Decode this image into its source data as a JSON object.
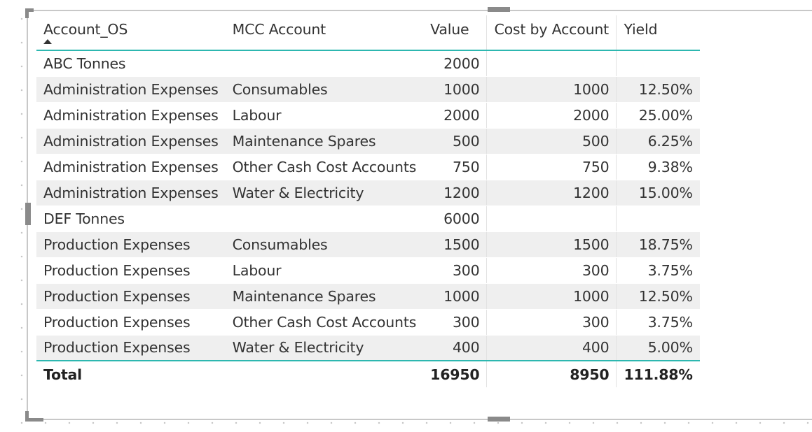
{
  "table": {
    "columns": [
      "Account_OS",
      "MCC Account",
      "Value",
      "Cost by Account",
      "Yield"
    ],
    "sort_column": "Account_OS",
    "sort_direction": "ascending",
    "rows": [
      [
        "ABC Tonnes",
        "",
        "2000",
        "",
        ""
      ],
      [
        "Administration Expenses",
        "Consumables",
        "1000",
        "1000",
        "12.50%"
      ],
      [
        "Administration Expenses",
        "Labour",
        "2000",
        "2000",
        "25.00%"
      ],
      [
        "Administration Expenses",
        "Maintenance Spares",
        "500",
        "500",
        "6.25%"
      ],
      [
        "Administration Expenses",
        "Other Cash Cost Accounts",
        "750",
        "750",
        "9.38%"
      ],
      [
        "Administration Expenses",
        "Water & Electricity",
        "1200",
        "1200",
        "15.00%"
      ],
      [
        "DEF Tonnes",
        "",
        "6000",
        "",
        ""
      ],
      [
        "Production Expenses",
        "Consumables",
        "1500",
        "1500",
        "18.75%"
      ],
      [
        "Production Expenses",
        "Labour",
        "300",
        "300",
        "3.75%"
      ],
      [
        "Production Expenses",
        "Maintenance Spares",
        "1000",
        "1000",
        "12.50%"
      ],
      [
        "Production Expenses",
        "Other Cash Cost Accounts",
        "300",
        "300",
        "3.75%"
      ],
      [
        "Production Expenses",
        "Water & Electricity",
        "400",
        "400",
        "5.00%"
      ]
    ],
    "total": [
      "Total",
      "",
      "16950",
      "8950",
      "111.88%"
    ]
  },
  "colors": {
    "accent": "#2db7b0",
    "row_alt": "#efefef",
    "frame": "#c8c8c8",
    "handle": "#8a8a8a"
  },
  "icons": [
    "sort-ascending-icon"
  ]
}
